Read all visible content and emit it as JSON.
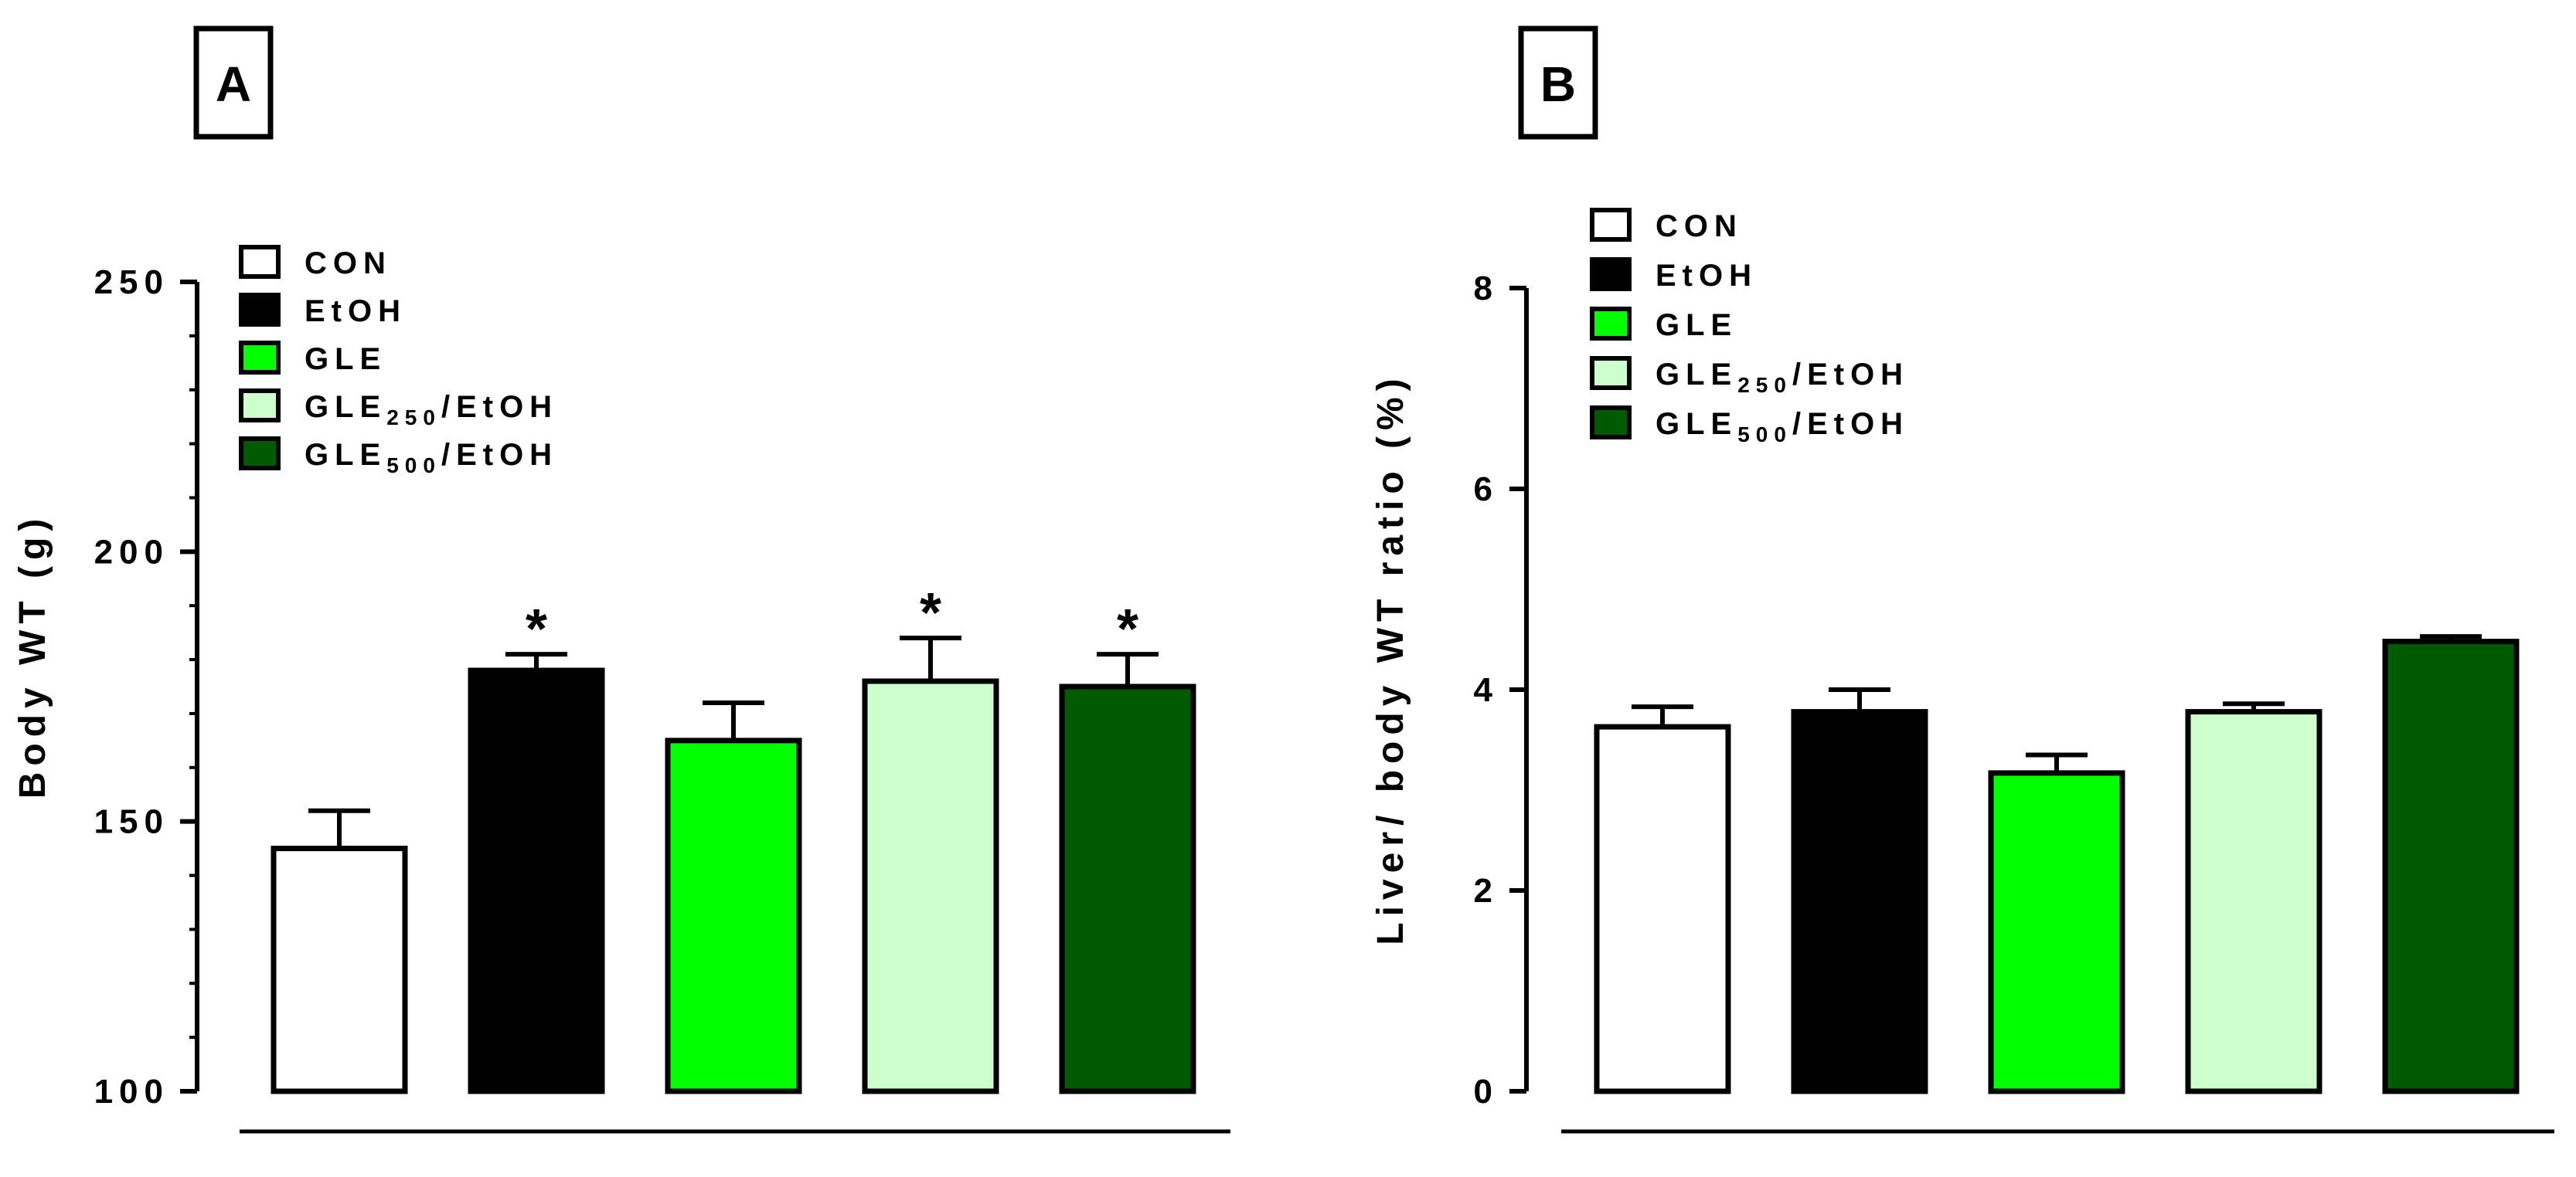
{
  "chart_data": [
    {
      "id": "A",
      "panel_label": "A",
      "type": "bar",
      "ylabel": "Body WT (g)",
      "ylim": [
        100,
        250
      ],
      "yticks": [
        "100",
        "150",
        "200",
        "250"
      ],
      "ytick_values": [
        100,
        150,
        200,
        250
      ],
      "minor_step": 10,
      "categories": [
        "CON",
        "EtOH",
        "GLE",
        "GLE250/EtOH",
        "GLE500/EtOH"
      ],
      "values": [
        145,
        178,
        165,
        176,
        175
      ],
      "errors": [
        7,
        3,
        7,
        8,
        6
      ],
      "significance": [
        "",
        "*",
        "",
        "*",
        "*"
      ],
      "legend": [
        {
          "label": "CON",
          "sub": "",
          "suffix": "",
          "color": "#ffffff"
        },
        {
          "label": "EtOH",
          "sub": "",
          "suffix": "",
          "color": "#000000"
        },
        {
          "label": "GLE",
          "sub": "",
          "suffix": "",
          "color": "#00ff00"
        },
        {
          "label": "GLE",
          "sub": "250",
          "suffix": "/EtOH",
          "color": "#ccffcc"
        },
        {
          "label": "GLE",
          "sub": "500",
          "suffix": "/EtOH",
          "color": "#005a00"
        }
      ]
    },
    {
      "id": "B",
      "panel_label": "B",
      "type": "bar",
      "ylabel": "Liver/ body WT ratio (%)",
      "ylim": [
        0,
        8
      ],
      "yticks": [
        "0",
        "2",
        "4",
        "6",
        "8"
      ],
      "ytick_values": [
        0,
        2,
        4,
        6,
        8
      ],
      "minor_step": 0,
      "categories": [
        "CON",
        "EtOH",
        "GLE",
        "GLE250/EtOH",
        "GLE500/EtOH"
      ],
      "values": [
        3.63,
        3.78,
        3.17,
        3.78,
        4.48
      ],
      "errors": [
        0.2,
        0.22,
        0.18,
        0.08,
        0.05
      ],
      "significance": [
        "",
        "",
        "",
        "",
        ""
      ],
      "legend": [
        {
          "label": "CON",
          "sub": "",
          "suffix": "",
          "color": "#ffffff"
        },
        {
          "label": "EtOH",
          "sub": "",
          "suffix": "",
          "color": "#000000"
        },
        {
          "label": "GLE",
          "sub": "",
          "suffix": "",
          "color": "#00ff00"
        },
        {
          "label": "GLE",
          "sub": "250",
          "suffix": "/EtOH",
          "color": "#ccffcc"
        },
        {
          "label": "GLE",
          "sub": "500",
          "suffix": "/EtOH",
          "color": "#005a00"
        }
      ]
    }
  ]
}
